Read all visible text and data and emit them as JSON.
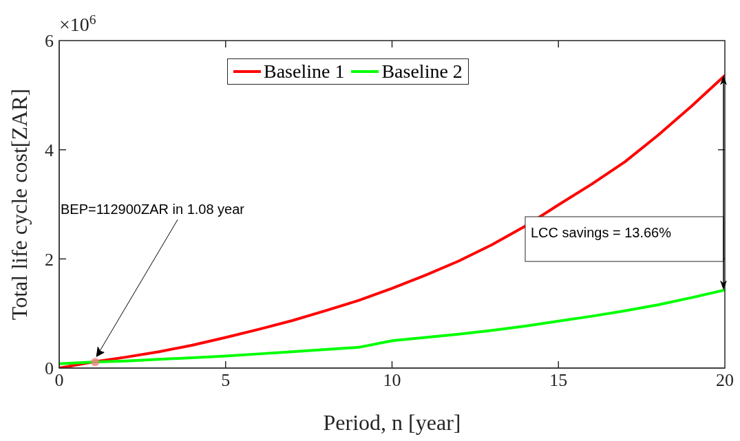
{
  "chart_data": {
    "type": "line",
    "xlabel": "Period, n [year]",
    "ylabel": "Total life cycle cost[ZAR]",
    "x": [
      0,
      1,
      2,
      3,
      4,
      5,
      6,
      7,
      8,
      9,
      10,
      11,
      12,
      13,
      14,
      15,
      16,
      17,
      18,
      19,
      20
    ],
    "series": [
      {
        "name": "Baseline 1",
        "color": "#ff0000",
        "values": [
          0,
          0.11,
          0.2,
          0.3,
          0.42,
          0.56,
          0.71,
          0.87,
          1.05,
          1.24,
          1.46,
          1.7,
          1.96,
          2.26,
          2.6,
          2.99,
          3.37,
          3.78,
          4.27,
          4.8,
          5.36
        ]
      },
      {
        "name": "Baseline 2",
        "color": "#00ff00",
        "values": [
          0.08,
          0.11,
          0.13,
          0.16,
          0.19,
          0.22,
          0.26,
          0.3,
          0.34,
          0.38,
          0.5,
          0.56,
          0.62,
          0.69,
          0.77,
          0.86,
          0.95,
          1.05,
          1.16,
          1.29,
          1.43
        ]
      },
      {
        "type": "scatter",
        "color": "#f08080",
        "marker": "circle",
        "x": [
          1.08
        ],
        "values": [
          0.11
        ]
      }
    ],
    "xlim": [
      0,
      20
    ],
    "xticks": [
      0,
      5,
      10,
      15,
      20
    ],
    "ylim": [
      0,
      6
    ],
    "yticks": [
      0,
      2,
      4,
      6
    ],
    "annotations": [
      "×10$^{6}$",
      {
        "text": "BEP=112900ZAR in 1.08 year",
        "x": 1.08,
        "y": 0.11
      },
      "LCC savings = 13.66%"
    ],
    "legend": "top",
    "grid": false,
    "marker": "none",
    "line_style": "solid"
  }
}
